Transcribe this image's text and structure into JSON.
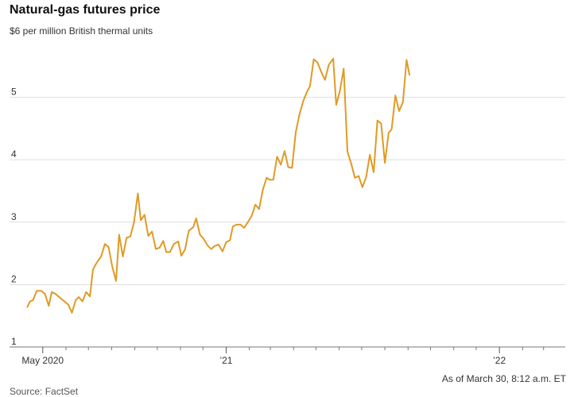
{
  "chart_data": {
    "type": "line",
    "title": "Natural-gas futures price",
    "subtitle": "$6 per million British thermal units",
    "ylim": [
      1,
      6
    ],
    "y_ticks": [
      {
        "value": 1,
        "label": "1"
      },
      {
        "value": 2,
        "label": "2"
      },
      {
        "value": 3,
        "label": "3"
      },
      {
        "value": 4,
        "label": "4"
      },
      {
        "value": 5,
        "label": "5"
      }
    ],
    "x_ticks": [
      {
        "date": "2020-05-01",
        "label": "May 2020"
      },
      {
        "date": "2021-01-01",
        "label": "’21"
      },
      {
        "date": "2022-01-01",
        "label": "’22"
      }
    ],
    "x_minor_ticks": [
      "2020-06-01",
      "2020-07-01",
      "2020-08-01",
      "2020-09-01",
      "2020-10-01",
      "2020-11-01",
      "2020-12-01",
      "2021-02-01",
      "2021-03-01",
      "2021-04-01",
      "2021-05-01",
      "2021-06-01",
      "2021-07-01",
      "2021-08-01",
      "2021-09-01",
      "2021-10-01",
      "2021-11-01",
      "2021-12-01",
      "2022-02-01",
      "2022-03-01"
    ],
    "xlim": [
      "2020-04-10",
      "2022-03-30"
    ],
    "line_color": "#e09a25",
    "series": [
      {
        "points": [
          [
            "2020-04-10",
            1.63
          ],
          [
            "2020-04-14",
            1.73
          ],
          [
            "2020-04-18",
            1.75
          ],
          [
            "2020-04-23",
            1.9
          ],
          [
            "2020-04-29",
            1.9
          ],
          [
            "2020-05-04",
            1.85
          ],
          [
            "2020-05-09",
            1.66
          ],
          [
            "2020-05-13",
            1.88
          ],
          [
            "2020-05-18",
            1.85
          ],
          [
            "2020-05-24",
            1.79
          ],
          [
            "2020-05-30",
            1.73
          ],
          [
            "2020-06-04",
            1.68
          ],
          [
            "2020-06-09",
            1.55
          ],
          [
            "2020-06-14",
            1.75
          ],
          [
            "2020-06-18",
            1.8
          ],
          [
            "2020-06-23",
            1.73
          ],
          [
            "2020-06-28",
            1.88
          ],
          [
            "2020-07-03",
            1.81
          ],
          [
            "2020-07-07",
            2.24
          ],
          [
            "2020-07-12",
            2.35
          ],
          [
            "2020-07-18",
            2.45
          ],
          [
            "2020-07-23",
            2.65
          ],
          [
            "2020-07-28",
            2.6
          ],
          [
            "2020-08-02",
            2.28
          ],
          [
            "2020-08-07",
            2.06
          ],
          [
            "2020-08-11",
            2.8
          ],
          [
            "2020-08-16",
            2.45
          ],
          [
            "2020-08-21",
            2.75
          ],
          [
            "2020-08-26",
            2.77
          ],
          [
            "2020-08-31",
            3.0
          ],
          [
            "2020-09-05",
            3.46
          ],
          [
            "2020-09-09",
            3.03
          ],
          [
            "2020-09-14",
            3.12
          ],
          [
            "2020-09-19",
            2.78
          ],
          [
            "2020-09-24",
            2.85
          ],
          [
            "2020-09-29",
            2.57
          ],
          [
            "2020-10-04",
            2.59
          ],
          [
            "2020-10-09",
            2.7
          ],
          [
            "2020-10-13",
            2.52
          ],
          [
            "2020-10-18",
            2.52
          ],
          [
            "2020-10-23",
            2.65
          ],
          [
            "2020-10-29",
            2.69
          ],
          [
            "2020-11-02",
            2.46
          ],
          [
            "2020-11-07",
            2.56
          ],
          [
            "2020-11-12",
            2.86
          ],
          [
            "2020-11-18",
            2.92
          ],
          [
            "2020-11-22",
            3.06
          ],
          [
            "2020-11-27",
            2.8
          ],
          [
            "2020-12-02",
            2.73
          ],
          [
            "2020-12-07",
            2.63
          ],
          [
            "2020-12-12",
            2.57
          ],
          [
            "2020-12-17",
            2.62
          ],
          [
            "2020-12-22",
            2.64
          ],
          [
            "2020-12-27",
            2.53
          ],
          [
            "2021-01-01",
            2.68
          ],
          [
            "2021-01-06",
            2.71
          ],
          [
            "2021-01-10",
            2.93
          ],
          [
            "2021-01-15",
            2.96
          ],
          [
            "2021-01-20",
            2.96
          ],
          [
            "2021-01-25",
            2.91
          ],
          [
            "2021-01-30",
            3.0
          ],
          [
            "2021-02-04",
            3.1
          ],
          [
            "2021-02-09",
            3.28
          ],
          [
            "2021-02-14",
            3.21
          ],
          [
            "2021-02-19",
            3.52
          ],
          [
            "2021-02-24",
            3.71
          ],
          [
            "2021-02-28",
            3.68
          ],
          [
            "2021-03-05",
            3.68
          ],
          [
            "2021-03-10",
            4.05
          ],
          [
            "2021-03-15",
            3.92
          ],
          [
            "2021-03-20",
            4.14
          ],
          [
            "2021-03-25",
            3.88
          ],
          [
            "2021-03-30",
            3.87
          ],
          [
            "2021-04-04",
            4.44
          ],
          [
            "2021-04-09",
            4.73
          ],
          [
            "2021-04-14",
            4.94
          ],
          [
            "2021-04-19",
            5.09
          ],
          [
            "2021-04-23",
            5.18
          ],
          [
            "2021-04-28",
            5.61
          ],
          [
            "2021-05-03",
            5.56
          ],
          [
            "2021-05-08",
            5.41
          ],
          [
            "2021-05-13",
            5.28
          ],
          [
            "2021-05-18",
            5.52
          ],
          [
            "2021-05-24",
            5.62
          ],
          [
            "2021-05-28",
            4.88
          ],
          [
            "2021-06-02",
            5.11
          ],
          [
            "2021-06-07",
            5.46
          ],
          [
            "2021-06-12",
            4.13
          ],
          [
            "2021-06-17",
            3.94
          ],
          [
            "2021-06-22",
            3.71
          ],
          [
            "2021-06-27",
            3.74
          ],
          [
            "2021-07-02",
            3.56
          ],
          [
            "2021-07-07",
            3.72
          ],
          [
            "2021-07-12",
            4.08
          ],
          [
            "2021-07-17",
            3.8
          ],
          [
            "2021-07-22",
            4.63
          ],
          [
            "2021-07-27",
            4.58
          ],
          [
            "2021-08-01",
            3.95
          ],
          [
            "2021-08-06",
            4.43
          ],
          [
            "2021-08-10",
            4.49
          ],
          [
            "2021-08-15",
            5.03
          ],
          [
            "2021-08-20",
            4.78
          ],
          [
            "2021-08-25",
            4.92
          ],
          [
            "2021-08-30",
            5.6
          ],
          [
            "2021-09-03",
            5.35
          ]
        ]
      }
    ]
  },
  "footer": {
    "asof": "As of March 30, 8:12 a.m. ET",
    "source": "Source: FactSet"
  }
}
